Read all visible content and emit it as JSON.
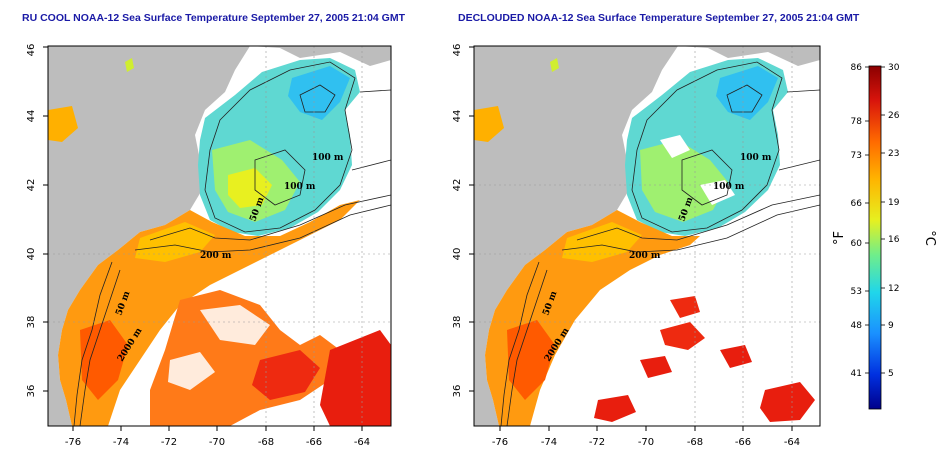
{
  "titles": {
    "left": "RU COOL NOAA-12 Sea Surface Temperature September 27, 2005 21:04 GMT",
    "right": "DECLOUDED NOAA-12 Sea Surface Temperature September 27, 2005 21:04 GMT"
  },
  "axes": {
    "lon_ticks": [
      "-76",
      "-74",
      "-72",
      "-70",
      "-68",
      "-66",
      "-64"
    ],
    "lat_ticks": [
      "36",
      "38",
      "40",
      "42",
      "44",
      "46"
    ]
  },
  "contour_labels": {
    "left": [
      "100 m",
      "100 m",
      "50 m",
      "200 m",
      "50 m",
      "2000 m"
    ],
    "right": [
      "100 m",
      "100 m",
      "50 m",
      "200 m",
      "50 m",
      "2000 m"
    ]
  },
  "colorbar": {
    "fahrenheit_label": "°F",
    "celsius_label": "°C",
    "fahrenheit_ticks": [
      "86",
      "78",
      "73",
      "66",
      "60",
      "53",
      "48",
      "41"
    ],
    "celsius_ticks": [
      "30",
      "26",
      "23",
      "19",
      "16",
      "12",
      "9",
      "5"
    ],
    "colors": [
      "#8b0000",
      "#e81e0e",
      "#ff7a00",
      "#ffc800",
      "#d8f02a",
      "#6ef08a",
      "#20d8e8",
      "#1088ff",
      "#0030e0",
      "#00008b"
    ]
  }
}
